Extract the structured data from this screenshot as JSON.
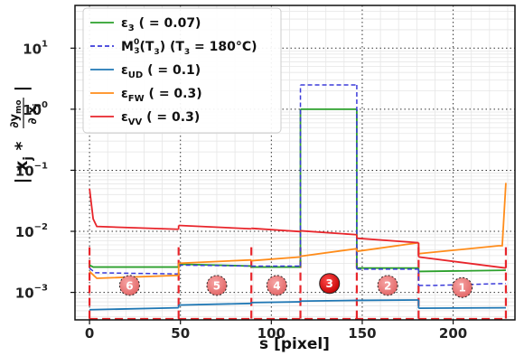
{
  "chart_data": {
    "type": "line",
    "xlabel": "s [pixel]",
    "ylabel": "| x_j * ∂y_mo / ∂x_j |",
    "xlim": [
      -8,
      234
    ],
    "ylim_log10": [
      -3.45,
      1.7
    ],
    "yscale": "log",
    "grid": true,
    "legend_position": "top-left",
    "x_ticks": [
      {
        "value": 0,
        "label": "0"
      },
      {
        "value": 50,
        "label": "50"
      },
      {
        "value": 100,
        "label": "100"
      },
      {
        "value": 150,
        "label": "150"
      },
      {
        "value": 200,
        "label": "200"
      }
    ],
    "y_ticks": [
      {
        "exp": 1,
        "label": "10",
        "sup": "1"
      },
      {
        "exp": 0,
        "label": "10",
        "sup": "0"
      },
      {
        "exp": -1,
        "label": "10",
        "sup": "−1"
      },
      {
        "exp": -2,
        "label": "10",
        "sup": "−2"
      },
      {
        "exp": -3,
        "label": "10",
        "sup": "−3"
      }
    ],
    "segment_boundaries": [
      0,
      49,
      89,
      116,
      147,
      181,
      229
    ],
    "segment_labels": [
      {
        "label": "6",
        "x": 22,
        "y": 0.0013,
        "highlighted": false
      },
      {
        "label": "5",
        "x": 70,
        "y": 0.0013,
        "highlighted": false
      },
      {
        "label": "4",
        "x": 103,
        "y": 0.0013,
        "highlighted": false
      },
      {
        "label": "3",
        "x": 132,
        "y": 0.0014,
        "highlighted": true
      },
      {
        "label": "2",
        "x": 164,
        "y": 0.0013,
        "highlighted": false
      },
      {
        "label": "1",
        "x": 205,
        "y": 0.0012,
        "highlighted": false
      }
    ],
    "series": [
      {
        "name": "ε3 (=0.07)",
        "name_main": "ε",
        "name_sub": "3",
        "name_suffix": " ( = 0.07)",
        "color": "#2ca02c",
        "dashed": false,
        "segments": [
          [
            [
              0,
              0.0028
            ],
            [
              2,
              0.0026
            ],
            [
              49,
              0.0026
            ]
          ],
          [
            [
              49,
              0.0029
            ],
            [
              89,
              0.0027
            ]
          ],
          [
            [
              89,
              0.0026
            ],
            [
              116,
              0.0026
            ]
          ],
          [
            [
              116,
              1.0
            ],
            [
              147,
              1.0
            ]
          ],
          [
            [
              147,
              0.0025
            ],
            [
              181,
              0.0025
            ]
          ],
          [
            [
              181,
              0.0022
            ],
            [
              229,
              0.0023
            ]
          ]
        ]
      },
      {
        "name": "M3^0(T3) (T3=180°C)",
        "name_main": "M",
        "name_sub": "3",
        "name_sup": "0",
        "name_suffix": "(T",
        "name_suffix_sub": "3",
        "name_suffix_rest": ") (T",
        "name_suffix_sub2": "3",
        "name_suffix_end": " = 180°C)",
        "color": "#3b3bd9",
        "dashed": true,
        "segments": [
          [
            [
              0,
              0.0025
            ],
            [
              3,
              0.0021
            ],
            [
              49,
              0.002
            ]
          ],
          [
            [
              49,
              0.0028
            ],
            [
              89,
              0.0027
            ]
          ],
          [
            [
              89,
              0.0027
            ],
            [
              116,
              0.0027
            ]
          ],
          [
            [
              116,
              2.5
            ],
            [
              147,
              2.5
            ]
          ],
          [
            [
              147,
              0.0024
            ],
            [
              181,
              0.0024
            ]
          ],
          [
            [
              181,
              0.0013
            ],
            [
              190,
              0.0013
            ],
            [
              229,
              0.0014
            ]
          ]
        ]
      },
      {
        "name": "εUD (=0.1)",
        "name_main": "ε",
        "name_sub": "UD",
        "name_suffix": " ( = 0.1)",
        "color": "#1f77b4",
        "dashed": false,
        "segments": [
          [
            [
              0,
              0.00052
            ],
            [
              49,
              0.00056
            ]
          ],
          [
            [
              49,
              0.00062
            ],
            [
              89,
              0.00066
            ]
          ],
          [
            [
              89,
              0.00068
            ],
            [
              116,
              0.0007
            ]
          ],
          [
            [
              116,
              0.00072
            ],
            [
              147,
              0.00074
            ]
          ],
          [
            [
              147,
              0.00074
            ],
            [
              181,
              0.00075
            ]
          ],
          [
            [
              181,
              0.00055
            ],
            [
              229,
              0.00056
            ]
          ]
        ]
      },
      {
        "name": "εFW (=0.3)",
        "name_main": "ε",
        "name_sub": "FW",
        "name_suffix": " ( = 0.3)",
        "color": "#ff8c1a",
        "dashed": false,
        "segments": [
          [
            [
              0,
              0.0022
            ],
            [
              4,
              0.0017
            ],
            [
              49,
              0.0019
            ]
          ],
          [
            [
              49,
              0.003
            ],
            [
              89,
              0.0034
            ]
          ],
          [
            [
              89,
              0.0033
            ],
            [
              116,
              0.0038
            ]
          ],
          [
            [
              116,
              0.0039
            ],
            [
              147,
              0.0052
            ]
          ],
          [
            [
              147,
              0.0047
            ],
            [
              181,
              0.0065
            ]
          ],
          [
            [
              181,
              0.0043
            ],
            [
              225,
              0.0058
            ],
            [
              227,
              0.0058
            ],
            [
              229,
              0.062
            ]
          ]
        ]
      },
      {
        "name": "εVV (=0.3)",
        "name_main": "ε",
        "name_sub": "VV",
        "name_suffix": " ( = 0.3)",
        "color": "#e8252b",
        "dashed": false,
        "segments": [
          [
            [
              0,
              0.05
            ],
            [
              2,
              0.016
            ],
            [
              4,
              0.012
            ],
            [
              49,
              0.0108
            ]
          ],
          [
            [
              49,
              0.0125
            ],
            [
              89,
              0.011
            ]
          ],
          [
            [
              89,
              0.0112
            ],
            [
              116,
              0.0099
            ]
          ],
          [
            [
              116,
              0.0102
            ],
            [
              147,
              0.0088
            ]
          ],
          [
            [
              147,
              0.0077
            ],
            [
              181,
              0.0065
            ]
          ],
          [
            [
              181,
              0.0038
            ],
            [
              229,
              0.0025
            ]
          ]
        ]
      }
    ]
  }
}
